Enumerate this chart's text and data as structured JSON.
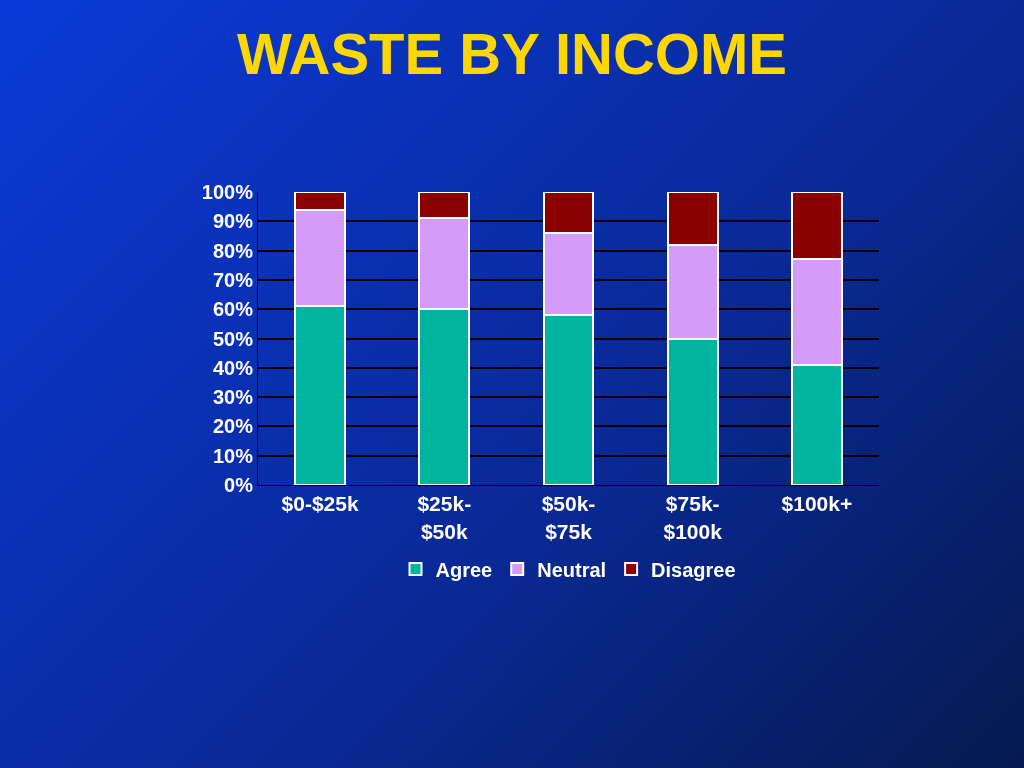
{
  "chart_data": {
    "type": "bar",
    "title": "WASTE BY INCOME",
    "stacked": true,
    "categories": [
      "$0-$25k",
      "$25k- $50k",
      "$50k- $75k",
      "$75k- $100k",
      "$100k+"
    ],
    "series": [
      {
        "name": "Agree",
        "color": "#00b4a0",
        "values": [
          61,
          60,
          58,
          50,
          41
        ]
      },
      {
        "name": "Neutral",
        "color": "#d49cf8",
        "values": [
          33,
          31,
          28,
          32,
          36
        ]
      },
      {
        "name": "Disagree",
        "color": "#8b0000",
        "values": [
          6,
          9,
          14,
          18,
          23
        ]
      }
    ],
    "ylim": [
      0,
      100
    ],
    "yticks": [
      {
        "value": 0,
        "label": "0%"
      },
      {
        "value": 10,
        "label": "10%"
      },
      {
        "value": 20,
        "label": "20%"
      },
      {
        "value": 30,
        "label": "30%"
      },
      {
        "value": 40,
        "label": "40%"
      },
      {
        "value": 50,
        "label": "50%"
      },
      {
        "value": 60,
        "label": "60%"
      },
      {
        "value": 70,
        "label": "70%"
      },
      {
        "value": 80,
        "label": "80%"
      },
      {
        "value": 90,
        "label": "90%"
      },
      {
        "value": 100,
        "label": "100%"
      }
    ],
    "grid": "y",
    "legend": "bottom"
  }
}
